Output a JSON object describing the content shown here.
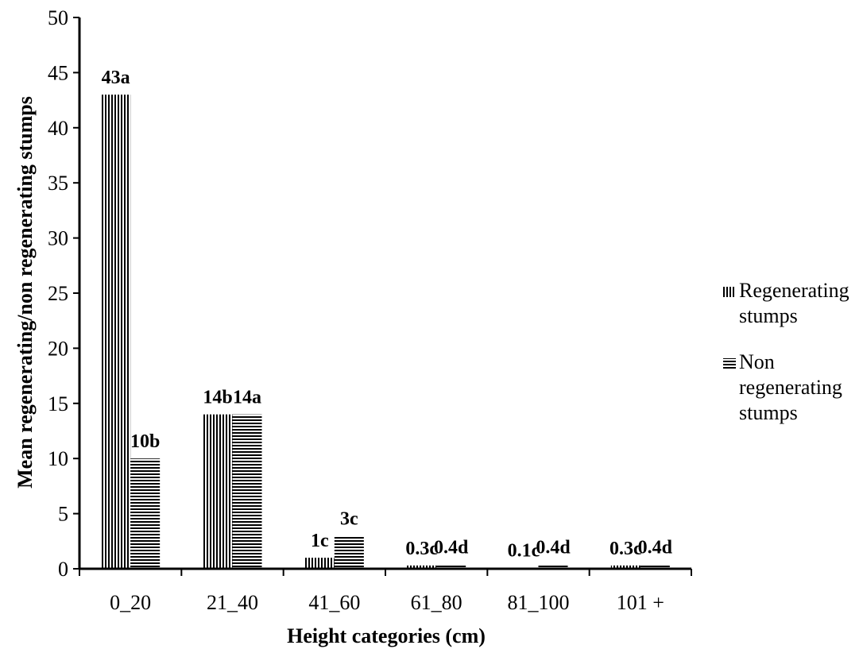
{
  "chart_data": {
    "type": "bar",
    "title": "",
    "xlabel": "Height categories (cm)",
    "ylabel": "Mean regenerating/non regenerating stumps",
    "categories": [
      "0_20",
      "21_40",
      "41_60",
      "61_80",
      "81_100",
      "101 +"
    ],
    "ylim": [
      0,
      50
    ],
    "yticks": [
      0,
      5,
      10,
      15,
      20,
      25,
      30,
      35,
      40,
      45,
      50
    ],
    "grid": false,
    "legend_position": "right",
    "series": [
      {
        "name": "Regenerating stumps",
        "pattern": "vertical-lines",
        "values": [
          43,
          14,
          1,
          0.3,
          0.1,
          0.3
        ],
        "labels": [
          "43a",
          "14b",
          "1c",
          "0.3c",
          "0.1c",
          "0.3c"
        ]
      },
      {
        "name": "Non regenerating stumps",
        "pattern": "horizontal-lines",
        "values": [
          10,
          14,
          3,
          0.4,
          0.4,
          0.4
        ],
        "labels": [
          "10b",
          "14a",
          "3c",
          "0.4d",
          "0.4d",
          "0.4d"
        ]
      }
    ]
  },
  "legend": {
    "items": [
      {
        "lines": [
          "Regenerating",
          "stumps"
        ]
      },
      {
        "lines": [
          "Non",
          "regenerating",
          "stumps"
        ]
      }
    ]
  }
}
